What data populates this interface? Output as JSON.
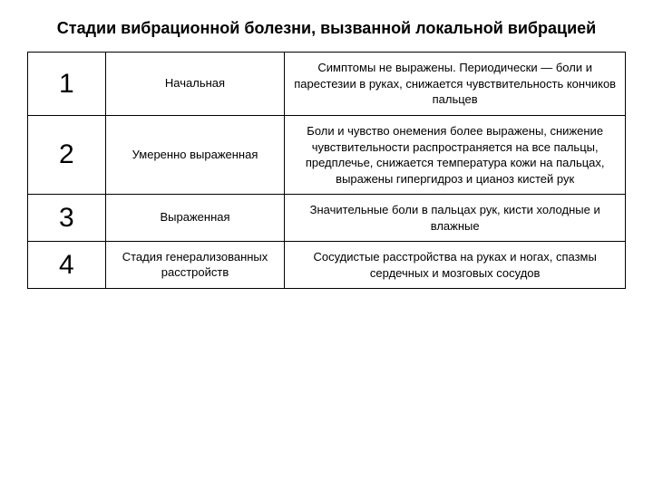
{
  "title": "Стадии вибрационной болезни, вызванной локальной вибрацией",
  "table": {
    "columns": [
      "num",
      "name",
      "desc"
    ],
    "col_widths": [
      "13%",
      "30%",
      "57%"
    ],
    "rows": [
      {
        "num": "1",
        "name": "Начальная",
        "desc": "Симптомы не выражены. Периодически — боли и парестезии в руках, снижается чувствительность кончиков пальцев"
      },
      {
        "num": "2",
        "name": "Умеренно выраженная",
        "desc": "Боли и чувство онемения более выражены, снижение чувствительности распространяется  на все пальцы, предплечье, снижается температура кожи на пальцах, выражены гипергидроз и цианоз кистей рук"
      },
      {
        "num": "3",
        "name": "Выраженная",
        "desc": "Значительные боли в пальцах рук, кисти холодные и влажные"
      },
      {
        "num": "4",
        "name": "Стадия генерализованных расстройств",
        "desc": "Сосудистые расстройства на руках и ногах, спазмы сердечных и  мозговых сосудов"
      }
    ]
  },
  "styling": {
    "background_color": "#ffffff",
    "text_color": "#000000",
    "border_color": "#000000",
    "title_fontsize": 18,
    "title_fontweight": "bold",
    "num_fontsize": 30,
    "cell_fontsize": 13,
    "font_family": "Arial"
  }
}
